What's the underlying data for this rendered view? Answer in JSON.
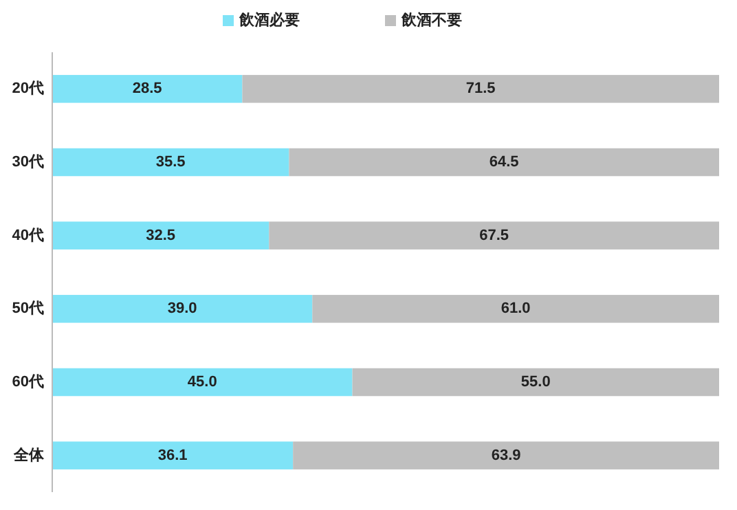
{
  "chart_data": {
    "type": "bar",
    "orientation": "horizontal",
    "stacked": true,
    "categories": [
      "20代",
      "30代",
      "40代",
      "50代",
      "60代",
      "全体"
    ],
    "xlim": [
      0,
      100
    ],
    "tick_labels": "y",
    "legend": "top",
    "series": [
      {
        "name": "飲酒必要",
        "color": "#7fe3f7",
        "values": [
          28.5,
          35.5,
          32.5,
          39.0,
          45.0,
          36.1
        ],
        "value_labels": [
          "28.5",
          "35.5",
          "32.5",
          "39.0",
          "45.0",
          "36.1"
        ]
      },
      {
        "name": "飲酒不要",
        "color": "#bfbfbf",
        "values": [
          71.5,
          64.5,
          67.5,
          61.0,
          55.0,
          63.9
        ],
        "value_labels": [
          "71.5",
          "64.5",
          "67.5",
          "61.0",
          "55.0",
          "63.9"
        ]
      }
    ]
  }
}
